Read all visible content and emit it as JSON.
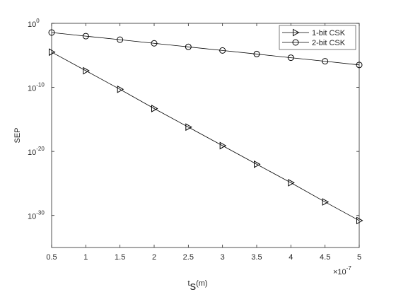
{
  "chart_data": {
    "type": "line",
    "xlabel": {
      "main": "t",
      "sub": "s",
      "rest": "(m)"
    },
    "ylabel": "SEP",
    "x_multiplier": {
      "base": "×10",
      "exponent": "-7"
    },
    "x": [
      0.5,
      1,
      1.5,
      2,
      2.5,
      3,
      3.5,
      4,
      4.5,
      5
    ],
    "series": [
      {
        "name": "1-bit CSK",
        "color": "#000000",
        "marker": "triangle-right",
        "values": [
          3.2e-05,
          4e-08,
          5e-11,
          5e-14,
          6.3e-17,
          8e-20,
          1e-22,
          1.3e-25,
          1.3e-28,
          1.6e-31
        ]
      },
      {
        "name": "2-bit CSK",
        "color": "#000000",
        "marker": "circle",
        "values": [
          0.037,
          0.01,
          0.0028,
          0.00076,
          0.00021,
          5.8e-05,
          1.6e-05,
          4.3e-06,
          1.2e-06,
          3.2e-07
        ]
      }
    ],
    "xlim": [
      0.5,
      5
    ],
    "xticks": [
      0.5,
      1,
      1.5,
      2,
      2.5,
      3,
      3.5,
      4,
      4.5,
      5
    ],
    "ylim": [
      1e-35,
      1
    ],
    "ylog": true,
    "yticks": [
      {
        "value": 1,
        "label": "10",
        "exponent": "0"
      },
      {
        "value": 1e-10,
        "label": "10",
        "exponent": "-10"
      },
      {
        "value": 1e-20,
        "label": "10",
        "exponent": "-20"
      },
      {
        "value": 1e-30,
        "label": "10",
        "exponent": "-30"
      }
    ],
    "grid": false,
    "legend": "top-right"
  }
}
